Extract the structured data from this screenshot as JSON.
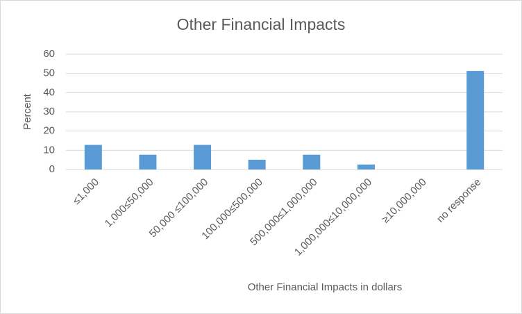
{
  "chart_data": {
    "type": "bar",
    "title": "Other Financial Impacts",
    "x_label": "Other Financial Impacts in dollars",
    "y_label": "Percent",
    "categories": [
      "≤1,000",
      "1,000≤50,000",
      "50,000 ≤100,000",
      "100,000≤500,000",
      "500,000≤1,000,000",
      "1,000,000≤10,000,000",
      "≥10,000,000",
      "no response"
    ],
    "values": [
      12.8,
      7.7,
      12.8,
      5.1,
      7.7,
      2.6,
      0,
      51.3
    ],
    "color": "#5b9bd5",
    "ylim": [
      0,
      60
    ],
    "yticks": [
      0,
      10,
      20,
      30,
      40,
      50,
      60
    ],
    "grid": true
  }
}
